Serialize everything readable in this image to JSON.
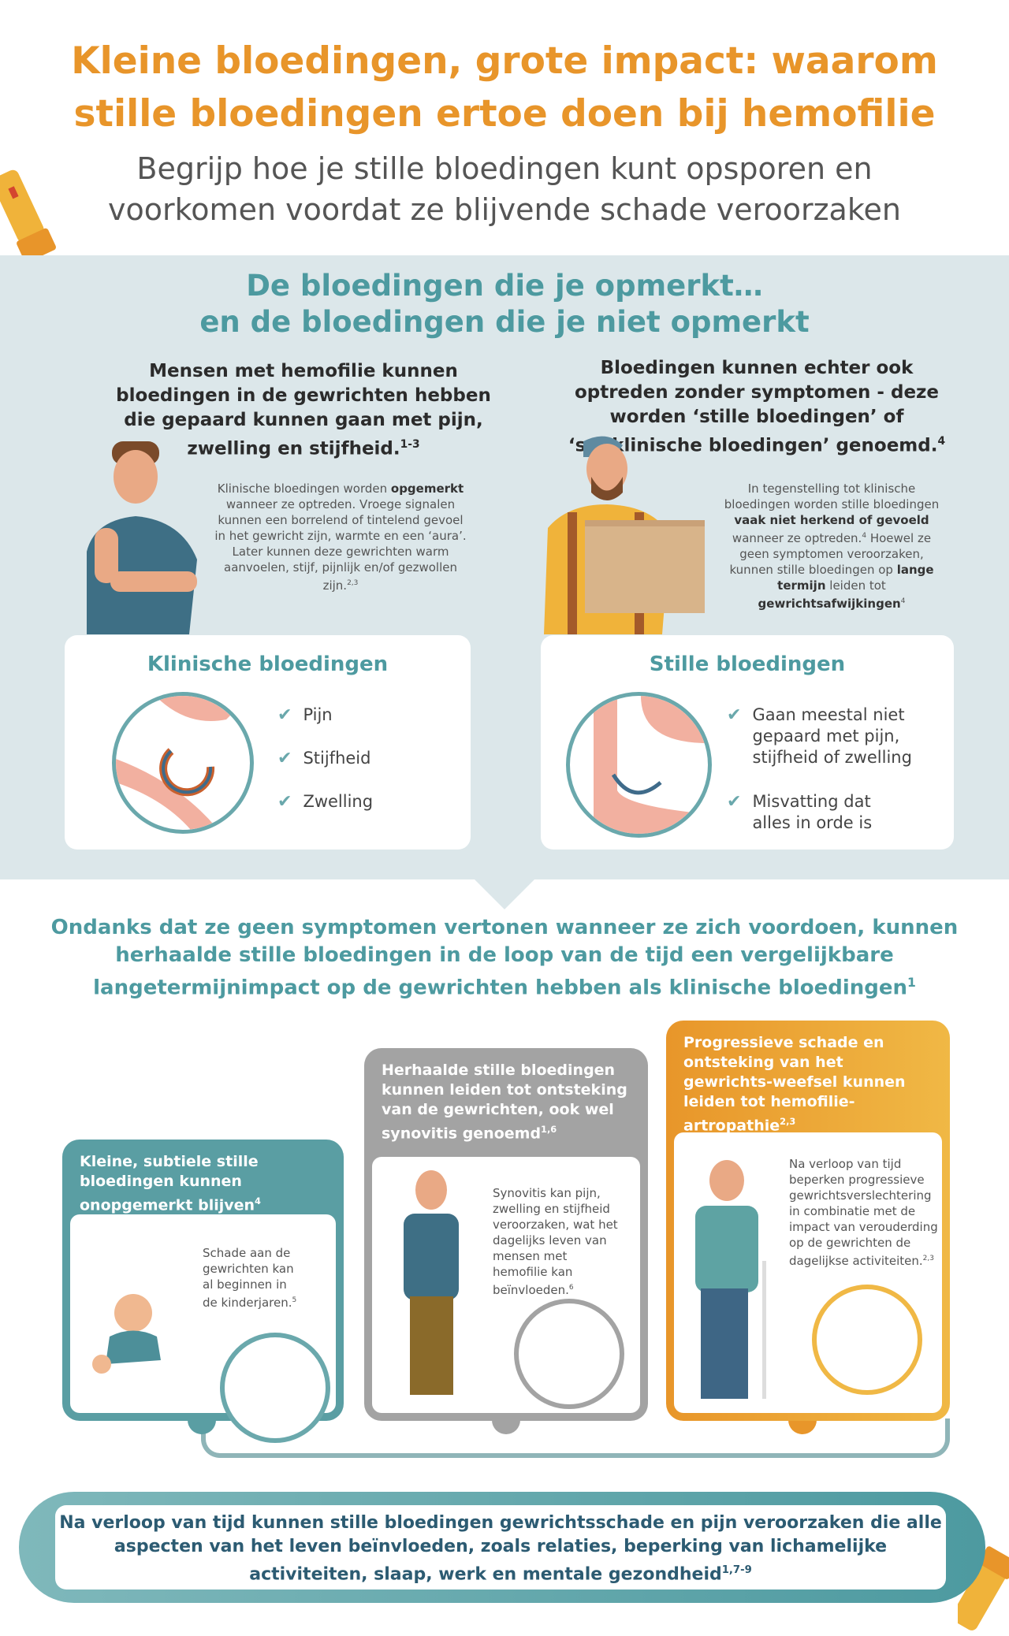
{
  "header": {
    "title_line1": "Kleine bloedingen, grote impact: waarom",
    "title_line2": "stille bloedingen ertoe doen bij hemofilie",
    "subtitle_line1": "Begrijp hoe je stille bloedingen kunt opsporen en",
    "subtitle_line2": "voorkomen voordat ze blijvende schade veroorzaken"
  },
  "section": {
    "heading_line1": "De bloedingen die je opmerkt…",
    "heading_line2": "en de bloedingen die je niet opmerkt"
  },
  "left": {
    "heading": "Mensen met hemofilie kunnen bloedingen in de gewrichten hebben die gepaard kunnen gaan met pijn, zwelling en stijfheid.",
    "heading_ref": "1-3",
    "text_a": "Klinische bloedingen worden ",
    "text_bold": "opgemerkt",
    "text_b": " wanneer ze optreden. Vroege signalen kunnen een borrelend of tintelend gevoel in het gewricht zijn, warmte en een ‘aura’. Later kunnen deze gewrichten warm aanvoelen, stijf, pijnlijk en/of gezwollen zijn.",
    "text_ref": "2,3",
    "card_title": "Klinische bloedingen",
    "items": [
      "Pijn",
      "Stijfheid",
      "Zwelling"
    ]
  },
  "right": {
    "heading": "Bloedingen kunnen echter ook optreden zonder symptomen - deze worden ‘stille bloedingen’ of ‘subklinische bloedingen’ genoemd.",
    "heading_ref": "4",
    "text_a": "In tegenstelling tot klinische bloedingen worden stille bloedingen ",
    "text_bold1": "vaak niet herkend of gevoeld",
    "text_b": " wanneer ze optreden.",
    "ref1": "4",
    "text_c": " Hoewel ze geen symptomen veroorzaken, kunnen stille bloedingen op ",
    "text_bold2": "lange termijn",
    "text_d": " leiden tot ",
    "text_bold3": "gewrichtsafwijkingen",
    "ref2": "4",
    "card_title": "Stille bloedingen",
    "items": [
      "Gaan meestal niet gepaard met pijn, stijfheid of zwelling",
      "Misvatting dat alles in orde is"
    ]
  },
  "middle": {
    "heading": "Ondanks dat ze geen symptomen vertonen wanneer ze zich voordoen, kunnen herhaalde stille bloedingen in de loop van de tijd een vergelijkbare langetermijnimpact op de gewrichten hebben als klinische bloedingen",
    "ref": "1"
  },
  "timeline": [
    {
      "title": "Kleine, subtiele stille bloedingen kunnen onopgemerkt blijven",
      "ref": "4",
      "text": "Schade aan de gewrichten kan al beginnen in de kinderjaren.",
      "text_ref": "5",
      "color": "#5a9ea3"
    },
    {
      "title": "Herhaalde stille bloedingen kunnen leiden tot ontsteking van de gewrichten, ook wel synovitis genoemd",
      "ref": "1,6",
      "text": "Synovitis kan pijn, zwelling en stijfheid veroorzaken, wat het dagelijks leven van mensen met hemofilie kan beïnvloeden.",
      "text_ref": "6",
      "color": "#a3a3a3"
    },
    {
      "title": "Progressieve schade en ontsteking van het gewrichts-weefsel kunnen leiden tot hemofilie-artropathie",
      "ref": "2,3",
      "text": "Na verloop van tijd beperken progressieve gewrichtsverslechtering in combinatie met de impact van verouderding op de gewrichten de dagelijkse activiteiten.",
      "text_ref": "2,3",
      "color": "#e8962a"
    }
  ],
  "footer": {
    "text": "Na verloop van tijd kunnen stille bloedingen gewrichtsschade en pijn veroorzaken die alle aspecten van het leven beïnvloeden, zoals relaties, beperking van lichamelijke activiteiten, slaap, werk en mentale gezondheid",
    "ref": "1,7-9"
  },
  "colors": {
    "orange": "#e8952a",
    "teal": "#4d9aa0",
    "band": "#dce7ea"
  }
}
